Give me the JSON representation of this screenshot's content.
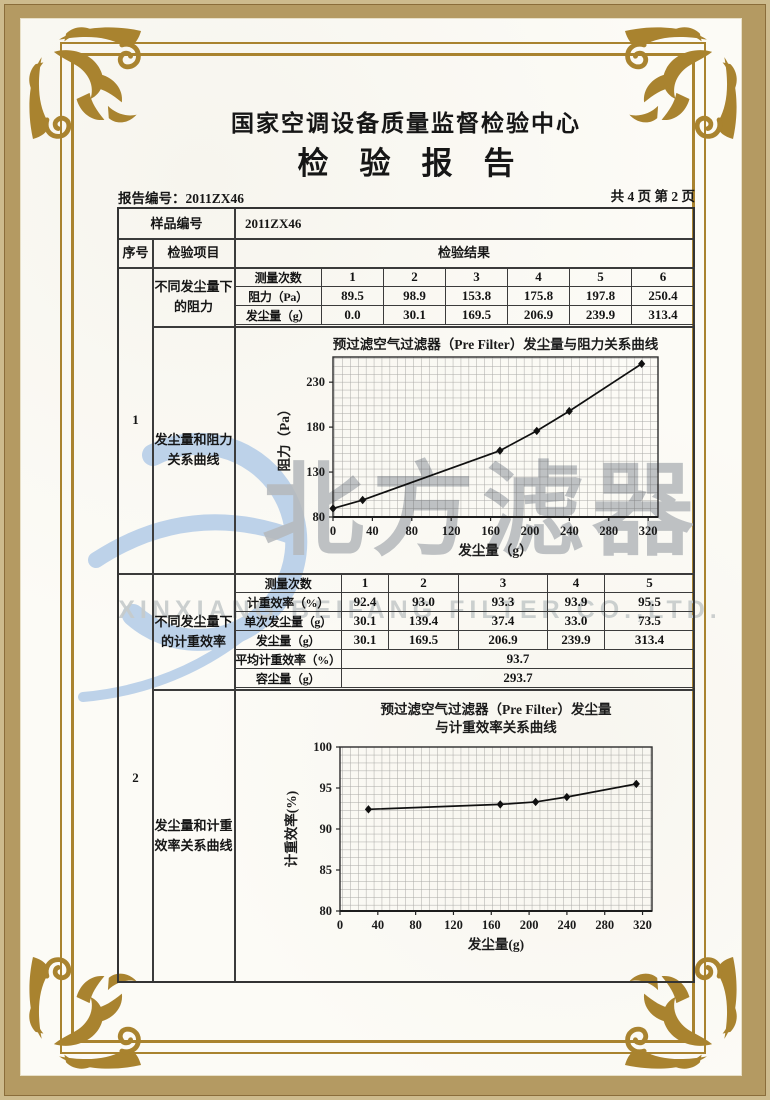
{
  "page": {
    "center_name": "国家空调设备质量监督检验中心",
    "report_title": "检　验　报　告",
    "report_no": "报告编号：2011ZX46",
    "page_info": "共 4 页 第 2 页"
  },
  "colors": {
    "frame_gold": "#a9832f",
    "band_tan": "#b49a62",
    "watermark_blue": "#b7cee8",
    "watermark_gray": "#b6babd"
  },
  "watermark": {
    "cn": "北方滤器",
    "en": "XINXIANG BEIFANG FILTER CO.,LTD."
  },
  "table": {
    "sample_no_label": "样品编号",
    "sample_no_value": "2011ZX46",
    "col_serial": "序号",
    "col_item": "检验项目",
    "col_result": "检验结果",
    "row1": {
      "serial": "1",
      "item_top": "不同发尘量下的阻力",
      "item_bottom": "发尘量和阻力关系曲线"
    },
    "row2": {
      "serial": "2",
      "item_top": "不同发尘量下的计重效率",
      "item_bottom": "发尘量和计重效率关系曲线"
    },
    "subtable1": {
      "rows": [
        {
          "label": "测量次数",
          "values": [
            "1",
            "2",
            "3",
            "4",
            "5",
            "6"
          ]
        },
        {
          "label": "阻力（Pa）",
          "values": [
            "89.5",
            "98.9",
            "153.8",
            "175.8",
            "197.8",
            "250.4"
          ]
        },
        {
          "label": "发尘量（g）",
          "values": [
            "0.0",
            "30.1",
            "169.5",
            "206.9",
            "239.9",
            "313.4"
          ]
        }
      ]
    },
    "subtable2": {
      "rows": [
        {
          "label": "测量次数",
          "values": [
            "1",
            "2",
            "3",
            "4",
            "5"
          ]
        },
        {
          "label": "计重效率（%）",
          "values": [
            "92.4",
            "93.0",
            "93.3",
            "93.9",
            "95.5"
          ]
        },
        {
          "label": "单次发尘量（g）",
          "values": [
            "30.1",
            "139.4",
            "37.4",
            "33.0",
            "73.5"
          ]
        },
        {
          "label": "发尘量（g）",
          "values": [
            "30.1",
            "169.5",
            "206.9",
            "239.9",
            "313.4"
          ]
        }
      ],
      "summary": [
        {
          "label": "平均计重效率（%）",
          "value": "93.7"
        },
        {
          "label": "容尘量（g）",
          "value": "293.7"
        }
      ]
    }
  },
  "chart_data": [
    {
      "type": "line",
      "title": "预过滤空气过滤器（Pre Filter）发尘量与阻力关系曲线",
      "title_lines": [
        "预过滤空气过滤器（Pre Filter）发尘量与阻力关系曲线"
      ],
      "xlabel": "发尘量（g）",
      "ylabel": "阻力（Pa）",
      "x": [
        0,
        30.1,
        169.5,
        206.9,
        239.9,
        313.4
      ],
      "y": [
        89.5,
        98.9,
        153.8,
        175.8,
        197.8,
        250.4
      ],
      "xlim": [
        0,
        330
      ],
      "ylim": [
        80,
        258
      ],
      "xticks": [
        0,
        40,
        80,
        120,
        160,
        200,
        240,
        280,
        320
      ],
      "yticks": [
        80,
        130,
        180,
        230
      ],
      "grid": true,
      "legend": "none",
      "marker": "diamond"
    },
    {
      "type": "line",
      "title": "预过滤空气过滤器（Pre Filter）发尘量与计重效率关系曲线",
      "title_lines": [
        "预过滤空气过滤器（Pre Filter）发尘量",
        "与计重效率关系曲线"
      ],
      "xlabel": "发尘量(g)",
      "ylabel": "计重效率(%)",
      "x": [
        30.1,
        169.5,
        206.9,
        239.9,
        313.4
      ],
      "y": [
        92.4,
        93.0,
        93.3,
        93.9,
        95.5
      ],
      "xlim": [
        0,
        330
      ],
      "ylim": [
        80,
        100
      ],
      "xticks": [
        0,
        40,
        80,
        120,
        160,
        200,
        240,
        280,
        320
      ],
      "yticks": [
        80,
        85,
        90,
        95,
        100
      ],
      "grid": true,
      "legend": "none",
      "marker": "diamond"
    }
  ]
}
